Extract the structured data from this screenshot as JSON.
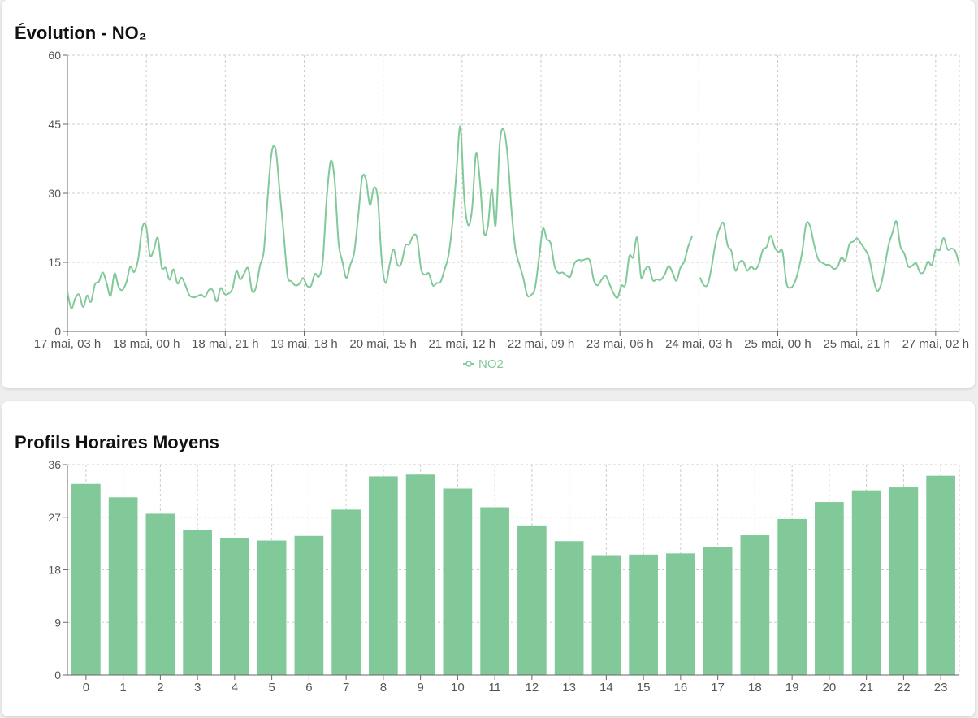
{
  "colors": {
    "series": "#82c99a",
    "grid": "#cccccc",
    "axis": "#666666",
    "tick_text": "#555555"
  },
  "chart_data": [
    {
      "type": "line",
      "title": "Évolution - NO₂",
      "ylim": [
        0,
        60
      ],
      "yticks": [
        0,
        15,
        30,
        45,
        60
      ],
      "x_start": "17 mai, 03 h",
      "x_end": "27 mai, 14 h",
      "x_tick_labels": [
        "17 mai, 03 h",
        "18 mai, 00 h",
        "18 mai, 21 h",
        "19 mai, 18 h",
        "20 mai, 15 h",
        "21 mai, 12 h",
        "22 mai, 09 h",
        "23 mai, 06 h",
        "24 mai, 03 h",
        "25 mai, 00 h",
        "25 mai, 21 h",
        "27 mai, 02 h"
      ],
      "grid": true,
      "legend_position": "bottom",
      "series": [
        {
          "name": "NO2",
          "gap_after_index": 190,
          "values": [
            8.6,
            5.0,
            7.2,
            8.0,
            5.3,
            7.8,
            6.4,
            10.2,
            10.8,
            12.8,
            10.4,
            7.7,
            12.6,
            9.7,
            9.0,
            10.7,
            14.1,
            12.9,
            15.7,
            22.3,
            23.0,
            16.5,
            17.8,
            20.3,
            13.9,
            13.8,
            11.2,
            13.5,
            10.4,
            11.7,
            10.1,
            7.9,
            7.4,
            7.6,
            8.0,
            7.5,
            9.0,
            8.9,
            6.5,
            9.4,
            8.1,
            8.2,
            9.3,
            13.1,
            11.3,
            12.6,
            13.7,
            8.8,
            9.6,
            14.2,
            17.6,
            29.5,
            38.9,
            39.5,
            30.7,
            21.7,
            12.1,
            10.9,
            10.0,
            10.3,
            11.6,
            9.9,
            9.9,
            12.5,
            11.9,
            15.3,
            29.0,
            37.0,
            33.0,
            19.3,
            15.1,
            11.6,
            14.5,
            17.2,
            24.9,
            33.4,
            32.9,
            27.4,
            31.2,
            28.8,
            15.3,
            10.5,
            14.5,
            17.8,
            14.5,
            14.8,
            18.6,
            18.9,
            20.8,
            20.3,
            13.6,
            12.3,
            12.6,
            10.0,
            10.5,
            10.8,
            13.5,
            16.6,
            23.6,
            34.6,
            44.5,
            29.0,
            23.1,
            26.7,
            38.7,
            32.4,
            21.6,
            22.8,
            30.8,
            23.1,
            40.6,
            43.9,
            38.5,
            26.5,
            18.0,
            14.6,
            11.7,
            7.9,
            7.9,
            9.4,
            15.7,
            22.3,
            20.1,
            19.1,
            14.1,
            12.7,
            12.8,
            12.2,
            11.9,
            14.7,
            15.5,
            15.4,
            15.7,
            15.3,
            11.0,
            10.0,
            11.3,
            12.1,
            10.2,
            8.3,
            7.3,
            9.9,
            10.2,
            16.3,
            16.1,
            20.4,
            11.8,
            13.4,
            14.0,
            11.1,
            11.3,
            11.2,
            12.3,
            14.2,
            12.8,
            11.0,
            13.8,
            15.2,
            18.4,
            20.7,
            null,
            11.7,
            10.0,
            10.3,
            14.3,
            19.4,
            22.4,
            23.5,
            18.8,
            17.4,
            13.2,
            15.0,
            15.2,
            13.2,
            14.1,
            13.4,
            14.7,
            17.7,
            18.4,
            20.8,
            18.3,
            17.2,
            17.4,
            10.5,
            9.5,
            10.4,
            13.1,
            17.2,
            23.3,
            22.9,
            19.0,
            15.8,
            15.0,
            14.5,
            14.4,
            13.6,
            14.0,
            16.1,
            15.4,
            18.9,
            19.5,
            20.2,
            19.0,
            17.8,
            16.1,
            11.9,
            8.9,
            10.0,
            14.1,
            18.7,
            21.5,
            23.9,
            18.5,
            16.9,
            14.1,
            14.3,
            14.8,
            12.8,
            13.0,
            15.2,
            14.4,
            17.8,
            17.7,
            20.3,
            17.8,
            18.0,
            17.4,
            14.5
          ]
        }
      ]
    },
    {
      "type": "bar",
      "title": "Profils Horaires Moyens",
      "ylim": [
        0,
        36
      ],
      "yticks": [
        0,
        9,
        18,
        27,
        36
      ],
      "categories": [
        "0",
        "1",
        "2",
        "3",
        "4",
        "5",
        "6",
        "7",
        "8",
        "9",
        "10",
        "11",
        "12",
        "13",
        "14",
        "15",
        "16",
        "17",
        "18",
        "19",
        "20",
        "21",
        "22",
        "23"
      ],
      "grid": true,
      "series": [
        {
          "values": [
            32.7,
            30.4,
            27.6,
            24.8,
            23.4,
            23.0,
            23.8,
            28.3,
            34.0,
            34.3,
            31.9,
            28.7,
            25.6,
            22.9,
            20.5,
            20.6,
            20.8,
            21.9,
            23.9,
            26.7,
            29.6,
            31.6,
            32.1,
            34.1
          ]
        }
      ]
    }
  ]
}
